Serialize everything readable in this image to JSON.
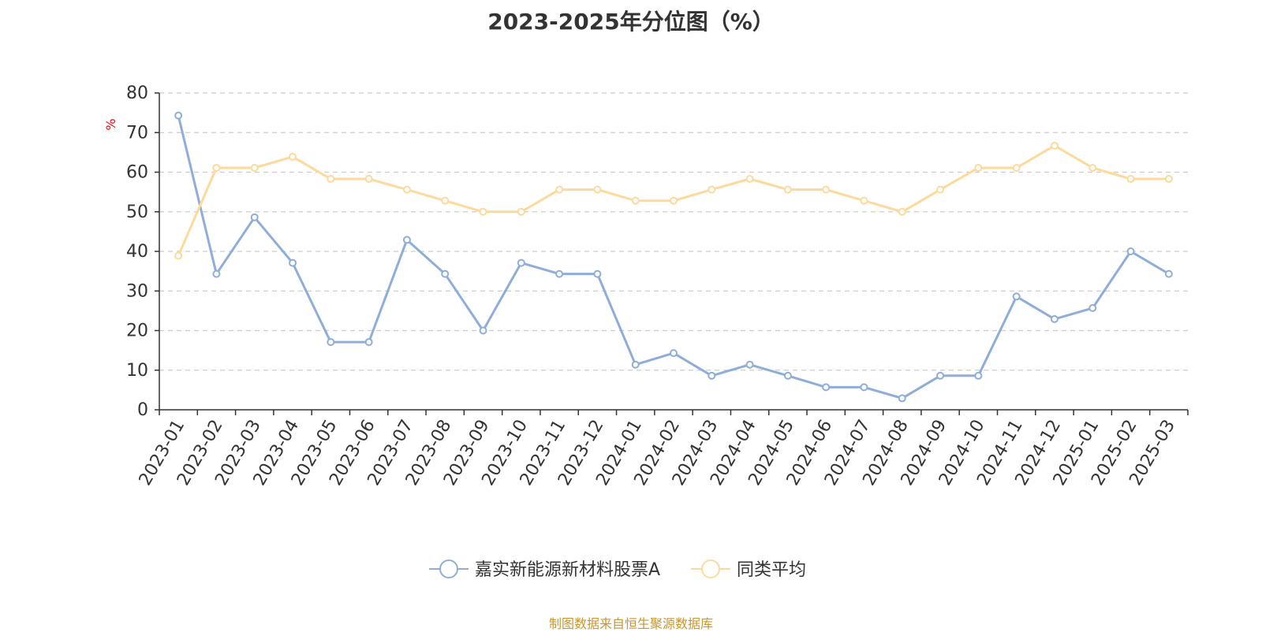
{
  "chart_data": {
    "type": "line",
    "title": "2023-2025年分位图（%）",
    "ylabel": "%",
    "ylim": [
      0,
      80
    ],
    "yticks": [
      0,
      10,
      20,
      30,
      40,
      50,
      60,
      70,
      80
    ],
    "grid": true,
    "legend_position": "bottom-center",
    "categories": [
      "2023-01",
      "2023-02",
      "2023-03",
      "2023-04",
      "2023-05",
      "2023-06",
      "2023-07",
      "2023-08",
      "2023-09",
      "2023-10",
      "2023-11",
      "2023-12",
      "2024-01",
      "2024-02",
      "2024-03",
      "2024-04",
      "2024-05",
      "2024-06",
      "2024-07",
      "2024-08",
      "2024-09",
      "2024-10",
      "2024-11",
      "2024-12",
      "2025-01",
      "2025-02",
      "2025-03"
    ],
    "series": [
      {
        "name": "嘉实新能源新材料股票A",
        "color": "#8eaed9",
        "values": [
          74.3,
          34.3,
          48.6,
          37.1,
          17.1,
          17.1,
          42.9,
          34.3,
          20.0,
          37.1,
          34.3,
          34.3,
          11.4,
          14.3,
          8.6,
          11.4,
          8.6,
          5.7,
          5.7,
          2.9,
          8.6,
          8.6,
          28.6,
          22.9,
          25.7,
          40.0,
          34.3
        ]
      },
      {
        "name": "同类平均",
        "color": "#fdd99b",
        "values": [
          38.9,
          61.1,
          61.1,
          63.9,
          58.3,
          58.3,
          55.6,
          52.8,
          50.0,
          50.0,
          55.6,
          55.6,
          52.8,
          52.8,
          55.6,
          58.3,
          55.6,
          55.6,
          52.8,
          50.0,
          55.6,
          61.1,
          61.1,
          66.7,
          61.1,
          58.3,
          58.3
        ]
      }
    ]
  },
  "footer": {
    "text": "制图数据来自恒生聚源数据库",
    "color": "#c8962d"
  },
  "colors": {
    "ylabel": "#ff0000",
    "axis": "#333333",
    "grid": "#cccccc"
  }
}
